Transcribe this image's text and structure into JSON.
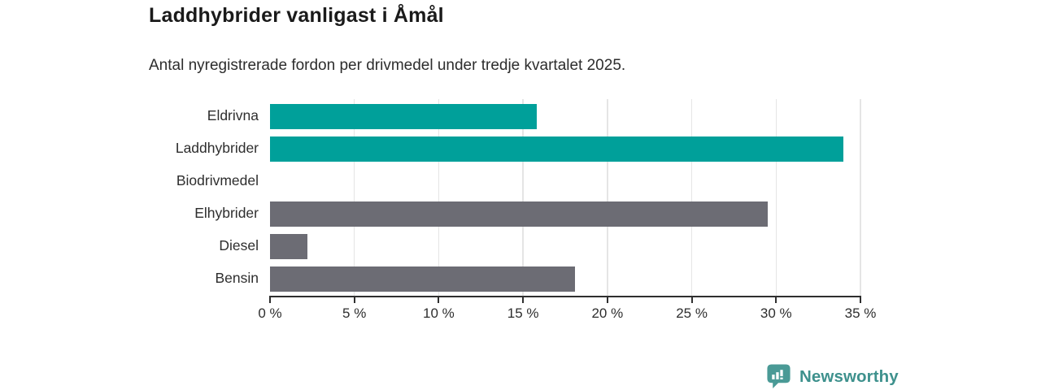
{
  "header": {
    "title": "Laddhybrider vanligast i Åmål",
    "subtitle": "Antal nyregistrerade fordon per drivmedel under tredje kvartalet 2025."
  },
  "chart_data": {
    "type": "bar",
    "orientation": "horizontal",
    "title": "Laddhybrider vanligast i Åmål",
    "subtitle": "Antal nyregistrerade fordon per drivmedel under tredje kvartalet 2025.",
    "categories": [
      "Eldrivna",
      "Laddhybrider",
      "Biodrivmedel",
      "Elhybrider",
      "Diesel",
      "Bensin"
    ],
    "values": [
      15.8,
      34.0,
      0,
      29.5,
      2.2,
      18.1
    ],
    "unit": "%",
    "bar_colors": [
      "#00a09a",
      "#00a09a",
      "#6c6c74",
      "#6c6c74",
      "#6c6c74",
      "#6c6c74"
    ],
    "xlabel": "",
    "ylabel": "",
    "xlim": [
      0,
      35
    ],
    "x_ticks": [
      0,
      5,
      10,
      15,
      20,
      25,
      30,
      35
    ],
    "x_tick_labels": [
      "0 %",
      "5 %",
      "10 %",
      "15 %",
      "20 %",
      "25 %",
      "30 %",
      "35 %"
    ],
    "grid": "vertical-gridlines-on",
    "legend": "none"
  },
  "footer": {
    "brand": "Newsworthy",
    "logo_icon": "newsworthy-bar-chart-bubble-icon"
  },
  "colors": {
    "accent_teal": "#00a09a",
    "neutral_gray": "#6c6c74",
    "gridline": "#e5e5e5",
    "axis": "#2f2f2f",
    "title_text": "#1a1a1a",
    "body_text": "#2e2e2e",
    "brand_teal": "#3e918d",
    "logo_fill": "#4a9a96"
  }
}
